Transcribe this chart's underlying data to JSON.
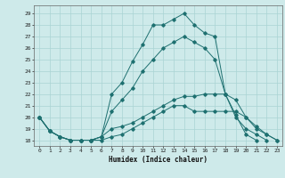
{
  "title": "",
  "xlabel": "Humidex (Indice chaleur)",
  "ylabel": "",
  "bg_color": "#ceeaea",
  "line_color": "#1e7070",
  "grid_color": "#aad4d4",
  "xlim": [
    -0.5,
    23.5
  ],
  "ylim": [
    17.5,
    29.7
  ],
  "yticks": [
    18,
    19,
    20,
    21,
    22,
    23,
    24,
    25,
    26,
    27,
    28,
    29
  ],
  "xticks": [
    0,
    1,
    2,
    3,
    4,
    5,
    6,
    7,
    8,
    9,
    10,
    11,
    12,
    13,
    14,
    15,
    16,
    17,
    18,
    19,
    20,
    21,
    22,
    23
  ],
  "series": [
    [
      20.0,
      18.8,
      18.3,
      18.0,
      18.0,
      18.0,
      18.0,
      18.3,
      18.5,
      19.0,
      19.5,
      20.0,
      20.5,
      21.0,
      21.0,
      20.5,
      20.5,
      20.5,
      20.5,
      20.5,
      20.0,
      19.2,
      18.5,
      18.0
    ],
    [
      20.0,
      18.8,
      18.3,
      18.0,
      18.0,
      18.0,
      18.3,
      19.0,
      19.2,
      19.5,
      20.0,
      20.5,
      21.0,
      21.5,
      21.8,
      21.8,
      22.0,
      22.0,
      22.0,
      21.5,
      20.0,
      19.0,
      18.5,
      18.0
    ],
    [
      20.0,
      18.8,
      18.3,
      18.0,
      18.0,
      18.0,
      18.3,
      20.5,
      21.5,
      22.5,
      24.0,
      25.0,
      26.0,
      26.5,
      27.0,
      26.5,
      26.0,
      25.0,
      22.0,
      20.2,
      18.5,
      18.0,
      null,
      null
    ],
    [
      20.0,
      18.8,
      18.3,
      18.0,
      18.0,
      18.0,
      18.3,
      22.0,
      23.0,
      24.8,
      26.3,
      28.0,
      28.0,
      28.5,
      29.0,
      28.0,
      27.3,
      27.0,
      22.0,
      20.0,
      19.0,
      18.5,
      18.0,
      null
    ]
  ]
}
